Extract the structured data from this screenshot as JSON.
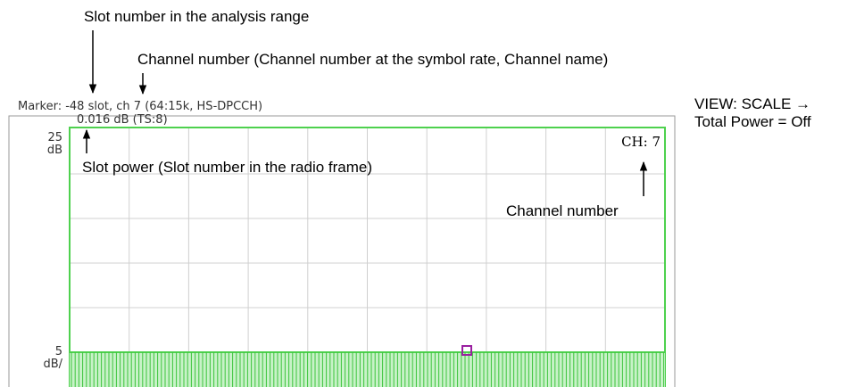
{
  "annotations": {
    "slot_number": "Slot number in the analysis range",
    "channel_number_top": "Channel number (Channel number at the symbol rate, Channel name)",
    "slot_power": "Slot power (Slot number in the radio frame)",
    "channel_number_right": "Channel number",
    "view_scale": "VIEW: SCALE →",
    "total_power": "Total Power = Off"
  },
  "screen": {
    "marker": "Marker: -48 slot, ch 7 (64:15k, HS-DPCCH)",
    "marker_value": "0.016 dB (TS:8)",
    "top_value": "25",
    "top_unit": "dB",
    "bottom_value": "5",
    "bottom_unit": "dB/",
    "channel": "CH: 7"
  }
}
